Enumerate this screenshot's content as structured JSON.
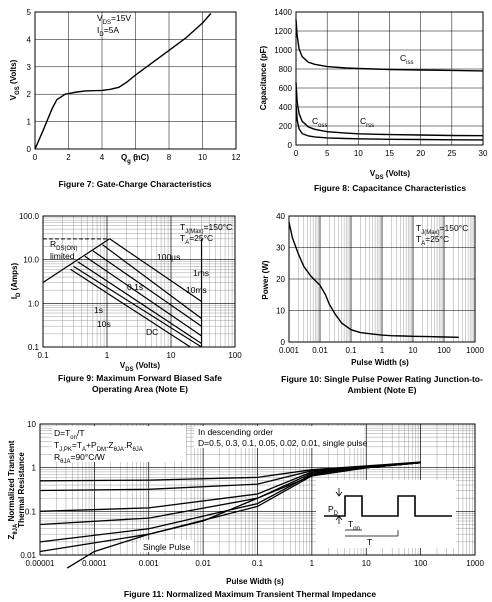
{
  "charts": [
    {
      "caption": "Figure 7: Gate-Charge Characteristics",
      "ylabel": "V",
      "ylabel_sub": "GS",
      "ylabel_unit": " (Volts)",
      "xlabel": "Q",
      "xlabel_sub": "g",
      "xlabel_unit": " (nC)",
      "xticks": [
        "0",
        "2",
        "4",
        "6",
        "8",
        "10",
        "12"
      ],
      "yticks": [
        "0",
        "1",
        "2",
        "3",
        "4",
        "5"
      ],
      "annot": [
        {
          "t": "V",
          "s": "DS",
          "r": "=15V"
        },
        {
          "t": "I",
          "s": "D",
          "r": "=5A"
        }
      ]
    },
    {
      "caption": "Figure 8: Capacitance Characteristics",
      "ylabel": "Capacitance (pF)",
      "xlabel": "V",
      "xlabel_sub": "DS",
      "xlabel_unit": " (Volts)",
      "xticks": [
        "0",
        "5",
        "10",
        "15",
        "20",
        "25",
        "30"
      ],
      "yticks": [
        "0",
        "200",
        "400",
        "600",
        "800",
        "1000",
        "1200",
        "1400"
      ],
      "labels": [
        {
          "t": "C",
          "s": "iss"
        },
        {
          "t": "C",
          "s": "oss"
        },
        {
          "t": "C",
          "s": "rss"
        }
      ]
    },
    {
      "caption1": "Figure 9: Maximum Forward Biased Safe",
      "caption2": "Operating Area (Note E)",
      "ylabel": "I",
      "ylabel_sub": "D",
      "ylabel_unit": " (Amps)",
      "xlabel": "V",
      "xlabel_sub": "DS",
      "xlabel_unit": " (Volts)",
      "xticks": [
        "0.1",
        "1",
        "10",
        "100"
      ],
      "yticks": [
        "0.1",
        "1.0",
        "10.0",
        "100.0"
      ],
      "annot1": {
        "t": "T",
        "s": "J(Max)",
        "r": "=150°C"
      },
      "annot2": {
        "t": "T",
        "s": "A",
        "r": "=25°C"
      },
      "rds": {
        "t": "R",
        "s": "DS(ON)",
        "r": ""
      },
      "rds2": "limited",
      "lines": [
        "100µs",
        "1ms",
        "10ms",
        "0.1s",
        "1s",
        "10s",
        "DC"
      ]
    },
    {
      "caption1": "Figure 10: Single Pulse Power Rating Junction-to-",
      "caption2": "Ambient (Note E)",
      "ylabel": "Power (W)",
      "xlabel": "Pulse Width (s)",
      "xticks": [
        "0.001",
        "0.01",
        "0.1",
        "1",
        "10",
        "100",
        "1000"
      ],
      "yticks": [
        "0",
        "10",
        "20",
        "30",
        "40"
      ],
      "annot1": {
        "t": "T",
        "s": "J(Max)",
        "r": "=150°C"
      },
      "annot2": {
        "t": "T",
        "s": "A",
        "r": "=25°C"
      }
    },
    {
      "caption": "Figure 11: Normalized Maximum Transient Thermal Impedance",
      "ylabel1": "Z",
      "ylabel1_sub": "θJA",
      "ylabel1_rest": " Normalized Transient",
      "ylabel2": "Thermal Resistance",
      "xlabel": "Pulse Width (s)",
      "xticks": [
        "0.00001",
        "0.0001",
        "0.001",
        "0.01",
        "0.1",
        "1",
        "10",
        "100",
        "1000"
      ],
      "yticks": [
        "0.01",
        "0.1",
        "1",
        "10"
      ],
      "annot_left": [
        {
          "t": "D=T",
          "s": "on",
          "r": "/T"
        },
        {
          "t": "T",
          "s": "J,PK",
          "r": "=T",
          "s2": "A",
          "r2": "+P",
          "s3": "DM",
          "r3": ".Z",
          "s4": "θJA",
          "r4": ".R",
          "s5": "θJA"
        },
        {
          "t": "R",
          "s": "θJA",
          "r": "=90°C/W"
        }
      ],
      "annot_right1": "In descending order",
      "annot_right2": "D=0.5, 0.3, 0.1, 0.05, 0.02, 0.01, single pulse",
      "single_pulse": "Single Pulse",
      "pd": {
        "t": "P",
        "s": "D"
      },
      "ton": {
        "t": "T",
        "s": "on"
      },
      "tT": "T"
    }
  ],
  "chart_data": [
    {
      "type": "line",
      "xlim": [
        0,
        12
      ],
      "ylim": [
        0,
        5
      ],
      "series": [
        {
          "x": [
            0,
            0.5,
            1,
            1.3,
            1.8,
            2.5,
            3,
            4,
            4.5,
            5,
            5.5,
            6,
            7,
            8,
            9,
            10,
            10.5
          ],
          "y": [
            0,
            0.7,
            1.45,
            1.8,
            2.0,
            2.08,
            2.12,
            2.14,
            2.18,
            2.25,
            2.45,
            2.7,
            3.15,
            3.6,
            4.05,
            4.6,
            4.95
          ]
        }
      ]
    },
    {
      "type": "line",
      "xlim": [
        0,
        30
      ],
      "ylim": [
        0,
        1400
      ],
      "series": [
        {
          "name": "Ciss",
          "x": [
            0,
            0.2,
            0.5,
            1,
            2,
            3,
            5,
            8,
            10,
            15,
            20,
            25,
            30
          ],
          "y": [
            1320,
            1150,
            1010,
            930,
            870,
            850,
            825,
            810,
            805,
            795,
            790,
            785,
            780
          ]
        },
        {
          "name": "Coss",
          "x": [
            0,
            0.2,
            0.5,
            1,
            2,
            3,
            5,
            8,
            10,
            15,
            20,
            25,
            30
          ],
          "y": [
            660,
            450,
            330,
            250,
            190,
            165,
            140,
            125,
            118,
            110,
            105,
            100,
            98
          ]
        },
        {
          "name": "Crss",
          "x": [
            0,
            0.2,
            0.5,
            1,
            2,
            3,
            5,
            8,
            10,
            15,
            20,
            25,
            30
          ],
          "y": [
            430,
            260,
            170,
            120,
            95,
            85,
            75,
            68,
            65,
            60,
            58,
            55,
            54
          ]
        }
      ]
    },
    {
      "type": "line",
      "xscale": "log",
      "yscale": "log",
      "xlim": [
        0.1,
        100
      ],
      "ylim": [
        0.1,
        100
      ],
      "series": [
        {
          "name": "RDS(ON) limited",
          "x": [
            0.1,
            1.1
          ],
          "y": [
            3,
            30
          ]
        },
        {
          "name": "100µs",
          "x": [
            1.1,
            30
          ],
          "y": [
            30,
            1.1
          ]
        },
        {
          "name": "1ms",
          "x": [
            0.85,
            30
          ],
          "y": [
            22,
            0.45
          ]
        },
        {
          "name": "10ms",
          "x": [
            0.6,
            30
          ],
          "y": [
            16,
            0.3
          ]
        },
        {
          "name": "0.1s",
          "x": [
            0.45,
            30
          ],
          "y": [
            12,
            0.18
          ]
        },
        {
          "name": "1s",
          "x": [
            0.35,
            30
          ],
          "y": [
            9,
            0.12
          ]
        },
        {
          "name": "10s",
          "x": [
            0.3,
            30
          ],
          "y": [
            7,
            0.1
          ]
        },
        {
          "name": "DC",
          "x": [
            0.27,
            20
          ],
          "y": [
            6,
            0.1
          ]
        }
      ]
    },
    {
      "type": "line",
      "xscale": "log",
      "xlim": [
        0.001,
        1000
      ],
      "ylim": [
        0,
        40
      ],
      "series": [
        {
          "x": [
            0.001,
            0.0013,
            0.002,
            0.003,
            0.005,
            0.01,
            0.015,
            0.02,
            0.03,
            0.05,
            0.1,
            0.2,
            0.5,
            1,
            2,
            5,
            10,
            30,
            100,
            300
          ],
          "y": [
            38,
            33,
            28,
            24,
            21,
            18,
            15,
            12,
            9,
            6,
            3.9,
            3,
            2.5,
            2.2,
            2,
            1.9,
            1.8,
            1.7,
            1.6,
            1.5
          ]
        }
      ]
    },
    {
      "type": "line",
      "xscale": "log",
      "yscale": "log",
      "xlim": [
        1e-05,
        1000
      ],
      "ylim": [
        0.01,
        10
      ],
      "series": [
        {
          "name": "D=0.5",
          "x": [
            1e-05,
            0.001,
            0.1,
            1,
            10,
            100
          ],
          "y": [
            0.5,
            0.52,
            0.6,
            0.9,
            1.1,
            1.35
          ]
        },
        {
          "name": "D=0.3",
          "x": [
            1e-05,
            0.001,
            0.1,
            1,
            10,
            100
          ],
          "y": [
            0.3,
            0.32,
            0.42,
            0.85,
            1.05,
            1.3
          ]
        },
        {
          "name": "D=0.1",
          "x": [
            1e-05,
            0.001,
            0.1,
            1,
            10,
            100
          ],
          "y": [
            0.1,
            0.12,
            0.25,
            0.8,
            1.0,
            1.3
          ]
        },
        {
          "name": "D=0.05",
          "x": [
            1e-05,
            0.001,
            0.1,
            1,
            10,
            100
          ],
          "y": [
            0.05,
            0.07,
            0.2,
            0.75,
            1.0,
            1.3
          ]
        },
        {
          "name": "D=0.02",
          "x": [
            1e-05,
            0.001,
            0.1,
            1,
            10,
            100
          ],
          "y": [
            0.02,
            0.04,
            0.15,
            0.7,
            1.0,
            1.3
          ]
        },
        {
          "name": "D=0.01",
          "x": [
            1e-05,
            0.001,
            0.1,
            1,
            10,
            100
          ],
          "y": [
            0.012,
            0.03,
            0.13,
            0.65,
            1.0,
            1.3
          ]
        },
        {
          "name": "single pulse",
          "x": [
            3.16e-05,
            0.0001,
            0.001,
            0.01,
            0.1,
            1,
            10,
            100
          ],
          "y": [
            0.005,
            0.012,
            0.03,
            0.06,
            0.2,
            0.65,
            1.0,
            1.3
          ]
        }
      ]
    }
  ]
}
